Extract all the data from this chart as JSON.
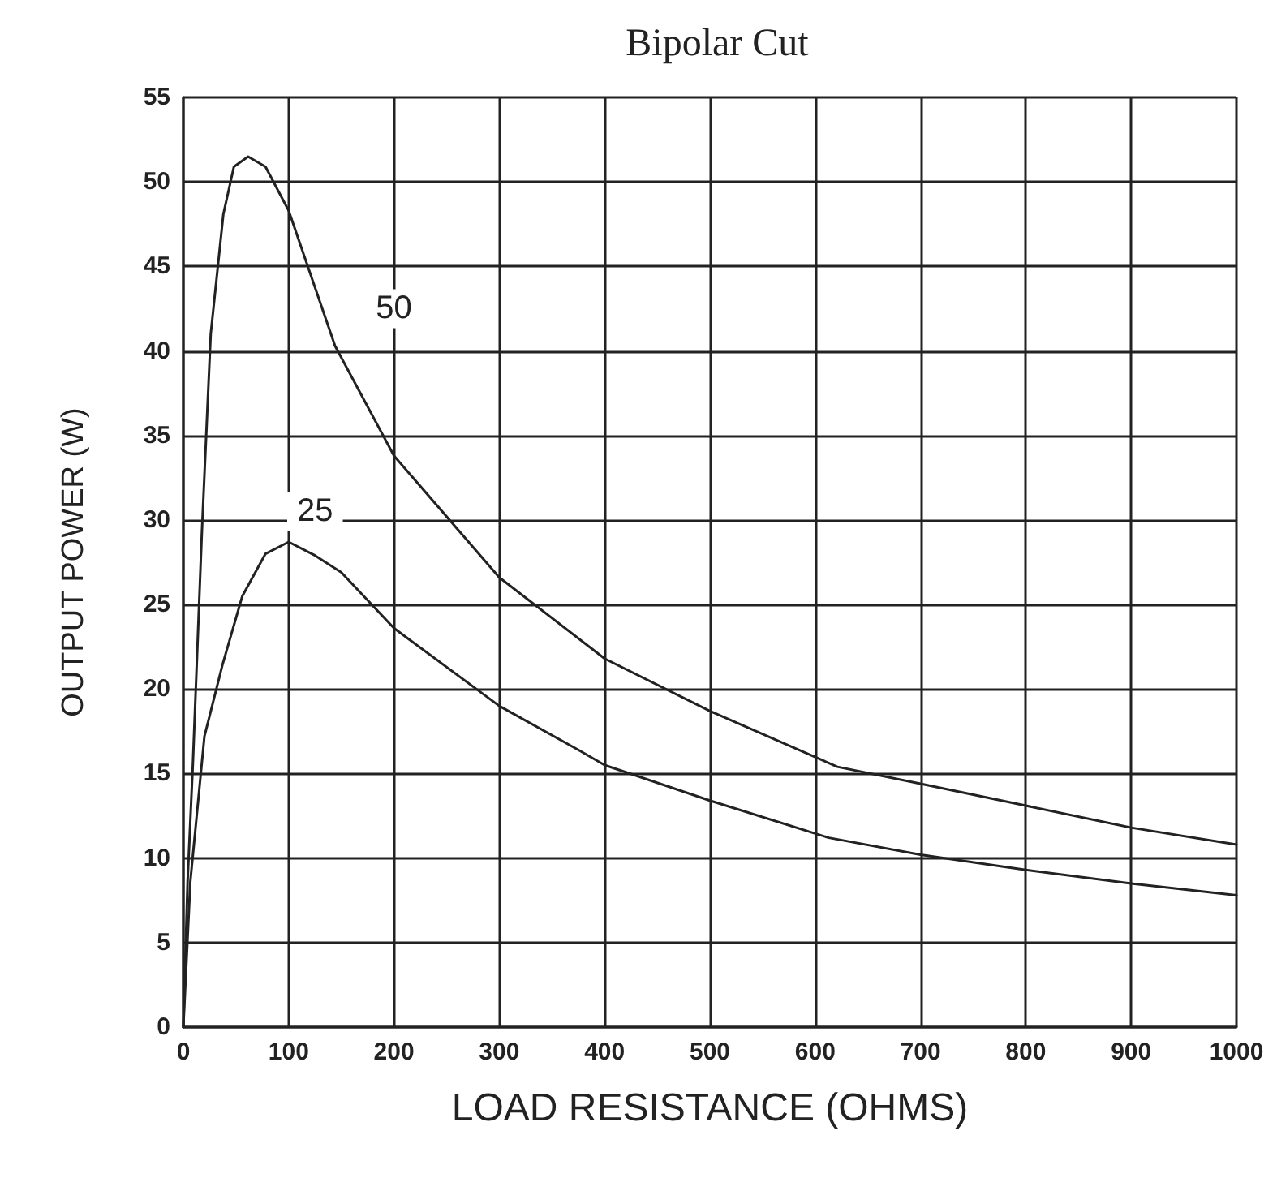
{
  "chart_data": {
    "type": "line",
    "title": "Bipolar Cut",
    "xlabel": "LOAD RESISTANCE (OHMS)",
    "ylabel": "OUTPUT POWER (W)",
    "xlim": [
      0,
      1000
    ],
    "xticks": [
      0,
      100,
      200,
      300,
      400,
      500,
      600,
      700,
      800,
      900,
      1000
    ],
    "ylim": [
      0,
      55
    ],
    "yticks": [
      0,
      5,
      10,
      15,
      20,
      25,
      30,
      35,
      40,
      45,
      50,
      55
    ],
    "grid": true,
    "marker": "none",
    "line_style": "solid",
    "annotations": [
      {
        "text": "50",
        "x": 200,
        "y": 42.5
      },
      {
        "text": "25",
        "x": 125,
        "y": 30.5
      }
    ],
    "series": [
      {
        "color": "#222222",
        "x": [
          0,
          4,
          9,
          17.6,
          26,
          38,
          48,
          61.5,
          78,
          100,
          144,
          200,
          300,
          400,
          500,
          621,
          700,
          800,
          900,
          1000
        ],
        "values": [
          0,
          8.6,
          15.5,
          29.3,
          41,
          48.1,
          50.9,
          51.5,
          50.9,
          48.3,
          40.3,
          33.8,
          26.6,
          21.8,
          18.7,
          15.4,
          14.4,
          13.1,
          11.8,
          10.8
        ]
      },
      {
        "color": "#222222",
        "x": [
          0,
          6.6,
          20,
          37,
          56,
          78,
          100,
          125,
          150,
          200,
          300,
          375,
          400,
          500,
          613,
          700,
          800,
          900,
          1000
        ],
        "values": [
          0,
          8.6,
          17.2,
          21.4,
          25.5,
          28,
          28.7,
          27.9,
          26.9,
          23.6,
          19,
          16.4,
          15.5,
          13.4,
          11.2,
          10.2,
          9.3,
          8.5,
          7.8
        ]
      }
    ]
  }
}
